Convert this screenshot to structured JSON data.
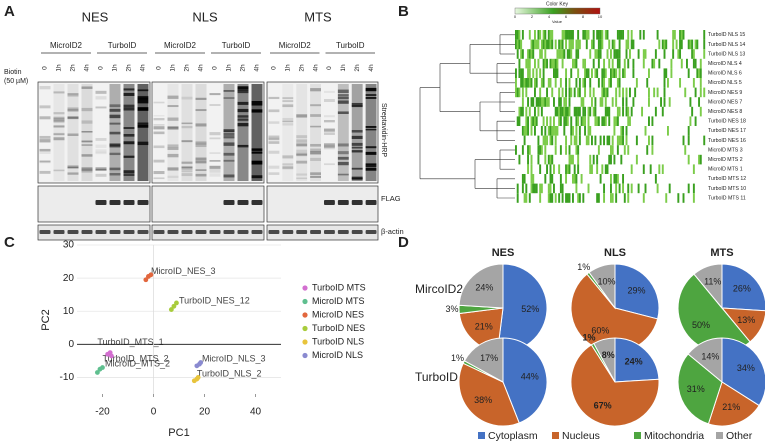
{
  "panels": {
    "a": "A",
    "b": "B",
    "c": "C",
    "d": "D"
  },
  "blot": {
    "groups": [
      "NES",
      "NLS",
      "MTS"
    ],
    "subgroups": [
      [
        "MicroID2",
        "TurboID"
      ],
      [
        "MicroID2",
        "TurboID"
      ],
      [
        "MicroID2",
        "TurboID"
      ]
    ],
    "lanes": [
      "0",
      "1h",
      "2h",
      "4h"
    ],
    "biotin": [
      "Biotin",
      "(50 µM)"
    ],
    "rows": [
      "Streptavidin-HRP",
      "FLAG",
      "β-actin"
    ]
  },
  "heatmap": {
    "key_title": "Color Key",
    "key_label": "Value",
    "key_ticks": [
      0,
      2,
      4,
      6,
      8,
      10
    ],
    "rows": [
      {
        "label": "TurboID NLS 15",
        "color": "#e8892a"
      },
      {
        "label": "TurboID NLS 14",
        "color": "#e8892a"
      },
      {
        "label": "TurboID NLS 13",
        "color": "#e8892a"
      },
      {
        "label": "MicroID NLS 4",
        "color": "#4a78c8"
      },
      {
        "label": "MicroID NLS 6",
        "color": "#4a78c8"
      },
      {
        "label": "MicroID NLS 5",
        "color": "#4a78c8"
      },
      {
        "label": "MicroID NES 9",
        "color": "#6ab04c"
      },
      {
        "label": "MicroID NES 7",
        "color": "#6ab04c"
      },
      {
        "label": "MicroID NES 8",
        "color": "#6ab04c"
      },
      {
        "label": "TurboID NES 18",
        "color": "#111111"
      },
      {
        "label": "TurboID NES 17",
        "color": "#111111"
      },
      {
        "label": "TurboID NES 16",
        "color": "#111111"
      },
      {
        "label": "MicroID MTS 3",
        "color": "#d02020"
      },
      {
        "label": "MicroID MTS 2",
        "color": "#d02020"
      },
      {
        "label": "MicroID MTS 1",
        "color": "#d02020"
      },
      {
        "label": "TurboID MTS 12",
        "color": "#8a3fb0"
      },
      {
        "label": "TurboID MTS 10",
        "color": "#8a3fb0"
      },
      {
        "label": "TurboID MTS 11",
        "color": "#8a3fb0"
      }
    ]
  },
  "chart_data": [
    {
      "type": "scatter",
      "xlabel": "PC1",
      "ylabel": "PC2",
      "xlim": [
        -30,
        50
      ],
      "ylim": [
        -15,
        30
      ],
      "xticks": [
        -20,
        0,
        20,
        40
      ],
      "yticks": [
        -10,
        0,
        10,
        20,
        30
      ],
      "grid": true,
      "series": [
        {
          "name": "TurboID MTS",
          "color": "#d36fd0",
          "x": [
            -17,
            -18,
            -16.5
          ],
          "y": [
            -2.5,
            -3,
            -3.5
          ]
        },
        {
          "name": "MicroID MTS",
          "color": "#5fbf8f",
          "x": [
            -22,
            -21,
            -20
          ],
          "y": [
            -8.5,
            -7.5,
            -7
          ]
        },
        {
          "name": "MicroID NES",
          "color": "#e2673e",
          "x": [
            -3,
            -2,
            -1
          ],
          "y": [
            19.5,
            20.5,
            21
          ]
        },
        {
          "name": "TurboID NES",
          "color": "#a8cc3c",
          "x": [
            7,
            8,
            9
          ],
          "y": [
            10.5,
            11.5,
            12.5
          ]
        },
        {
          "name": "TurboID NLS",
          "color": "#e8c43c",
          "x": [
            16,
            17,
            17.5
          ],
          "y": [
            -11,
            -10.5,
            -10
          ]
        },
        {
          "name": "MicroID NLS",
          "color": "#8a8ad0",
          "x": [
            17,
            18,
            18.5
          ],
          "y": [
            -6.5,
            -6,
            -5.5
          ]
        }
      ],
      "annotations": [
        {
          "text": "MicroID_NES_3",
          "x": -1,
          "y": 22,
          "color": "#e2673e"
        },
        {
          "text": "TurboID_NES_12",
          "x": 10,
          "y": 13,
          "color": "#a8cc3c"
        },
        {
          "text": "TurboID_MTS_1",
          "x": -22,
          "y": 0.5,
          "color": "#d36fd0"
        },
        {
          "text": "TurboID_MTS_2",
          "x": -20,
          "y": -4.5,
          "color": "#d36fd0"
        },
        {
          "text": "MicroID_MTS_2",
          "x": -19,
          "y": -6,
          "color": "#5fbf8f"
        },
        {
          "text": "MicroID_NLS_3",
          "x": 19,
          "y": -4.5,
          "color": "#8a8ad0"
        },
        {
          "text": "TurboID_NLS_2",
          "x": 17,
          "y": -9,
          "color": "#e8c43c"
        }
      ]
    },
    {
      "type": "pie",
      "categories": [
        "Cytoplasm",
        "Nucleus",
        "Mitochondria",
        "Other"
      ],
      "colors": [
        "#4472c4",
        "#c8642a",
        "#4ea540",
        "#a5a5a5"
      ],
      "column_labels": [
        "NES",
        "NLS",
        "MTS"
      ],
      "row_labels": [
        "MircoID2",
        "TurboID"
      ],
      "pies": [
        {
          "values": [
            52,
            21,
            3,
            24
          ],
          "value_labels": [
            "52%",
            "21%",
            "3%",
            "24%"
          ]
        },
        {
          "values": [
            29,
            60,
            1,
            10
          ],
          "value_labels": [
            "29%",
            "60%",
            "1%",
            "10%"
          ]
        },
        {
          "values": [
            26,
            13,
            50,
            11
          ],
          "value_labels": [
            "26%",
            "13%",
            "50%",
            "11%"
          ]
        },
        {
          "values": [
            44,
            38,
            1,
            17
          ],
          "value_labels": [
            "44%",
            "38%",
            "1%",
            "17%"
          ]
        },
        {
          "values": [
            24,
            67,
            1,
            8
          ],
          "value_labels": [
            "24%",
            "67%",
            "1%",
            "8%"
          ],
          "bold": true
        },
        {
          "values": [
            34,
            21,
            31,
            14
          ],
          "value_labels": [
            "34%",
            "21%",
            "31%",
            "14%"
          ]
        }
      ]
    }
  ]
}
